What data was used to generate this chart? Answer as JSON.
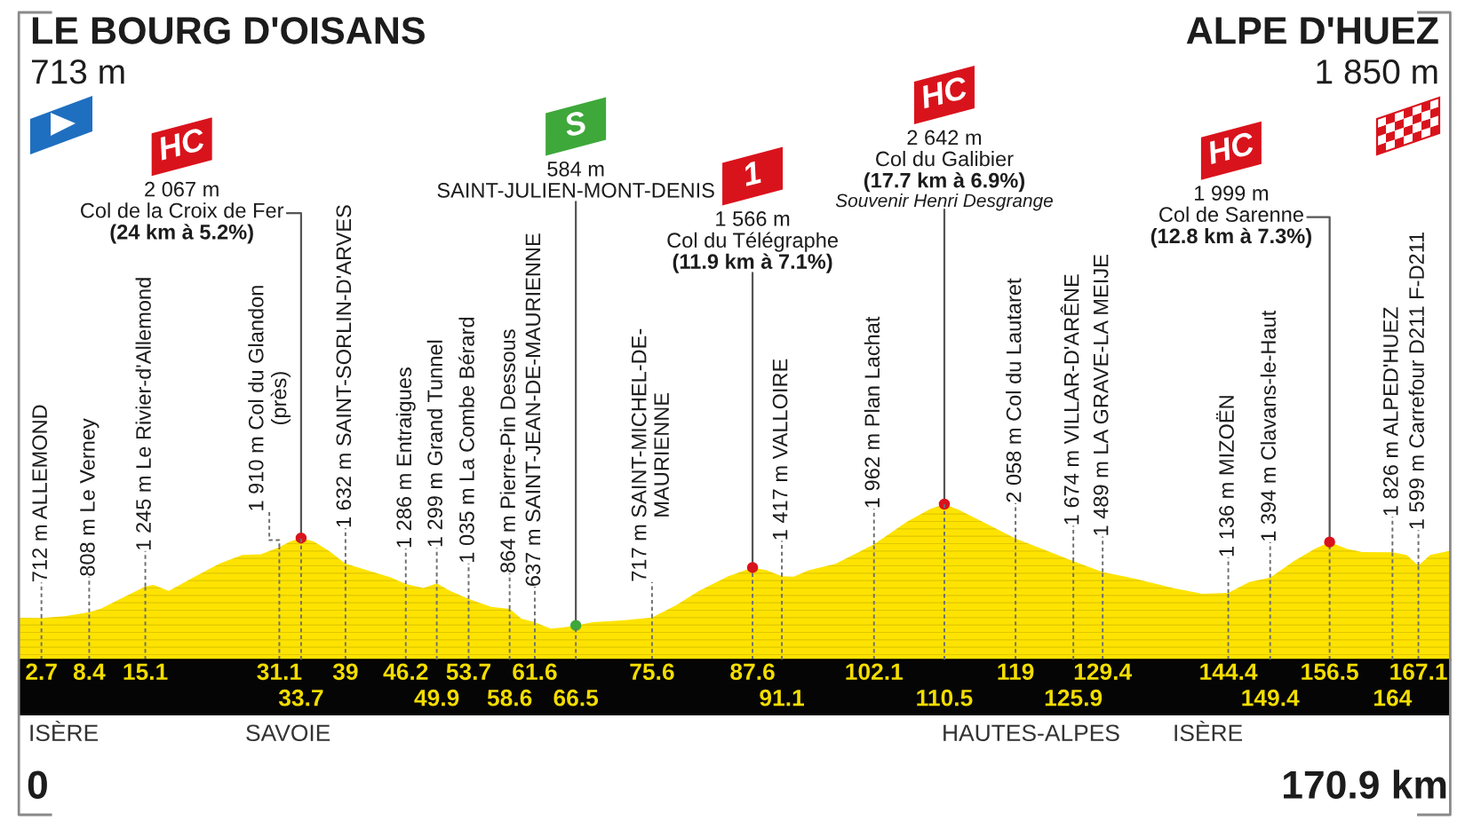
{
  "chart_data": {
    "type": "area",
    "xlim": [
      0,
      170.9
    ],
    "xticks": [
      2.7,
      8.4,
      15.1,
      31.1,
      39,
      46.2,
      53.7,
      61.6,
      75.6,
      87.6,
      102.1,
      119,
      129.4,
      144.4,
      156.5,
      167.1
    ],
    "x2lim": [
      0,
      170.9
    ],
    "x2ticks": [
      33.7,
      49.9,
      58.6,
      66.5,
      91.1,
      110.5,
      125.9,
      149.4,
      164
    ],
    "grid": "x",
    "series": [
      {
        "color": "#fee300",
        "x": [
          0,
          2.7,
          5.5,
          8.4,
          9.8,
          11.9,
          15.1,
          16.1,
          17.9,
          21.1,
          23.9,
          26.7,
          28.9,
          31.1,
          32.4,
          33.7,
          35.2,
          37,
          39,
          41.6,
          44.4,
          46.2,
          48.3,
          49.9,
          51.5,
          53.7,
          56.4,
          58.6,
          60,
          61.6,
          63.5,
          64.9,
          66.5,
          68.5,
          72,
          75.6,
          78.4,
          81.2,
          84.7,
          87.6,
          89.3,
          91.1,
          92.5,
          94.3,
          97.5,
          102.1,
          106,
          108.8,
          110.5,
          112.3,
          115.1,
          119,
          122.2,
          125.9,
          129.4,
          133.5,
          137.8,
          141.3,
          144.4,
          146.9,
          149.4,
          152.3,
          154.7,
          156.5,
          158.6,
          160.4,
          164,
          165.7,
          167.1,
          168.5,
          170.9
        ],
        "values": [
          713,
          712,
          740,
          808,
          870,
          1020,
          1245,
          1270,
          1170,
          1420,
          1630,
          1780,
          1790,
          1910,
          2010,
          2067,
          2010,
          1850,
          1632,
          1520,
          1400,
          1286,
          1220,
          1299,
          1170,
          1035,
          900,
          864,
          700,
          637,
          530,
          550,
          584,
          640,
          670,
          717,
          920,
          1170,
          1420,
          1566,
          1520,
          1417,
          1410,
          1520,
          1630,
          1962,
          2340,
          2560,
          2642,
          2540,
          2340,
          2058,
          1880,
          1674,
          1489,
          1370,
          1220,
          1120,
          1136,
          1320,
          1394,
          1680,
          1880,
          1999,
          1880,
          1830,
          1826,
          1780,
          1599,
          1780,
          1850
        ],
        "value_labels": [
          null,
          "712 m ALLEMOND",
          null,
          "808 m Le Verney",
          null,
          null,
          "1 245 m Le Rivier-d'Allemond",
          null,
          null,
          null,
          null,
          null,
          null,
          "1 910 m Col du Glandon\n(près)",
          null,
          null,
          null,
          null,
          "1 632 m SAINT-SORLIN-D'ARVES",
          null,
          null,
          "1 286 m Entraigues",
          null,
          "1 299 m Grand Tunnel",
          null,
          "1 035 m La Combe Bérard",
          null,
          "864 m Pierre-Pin Dessous",
          null,
          "637 m SAINT-JEAN-DE-MAURIENNE",
          null,
          null,
          null,
          null,
          null,
          "717 m SAINT-MICHEL-DE-\nMAURIENNE",
          null,
          null,
          null,
          null,
          null,
          "1 417 m VALLOIRE",
          null,
          null,
          null,
          "1 962 m Plan Lachat",
          null,
          null,
          null,
          null,
          null,
          "2 058 m Col du Lautaret",
          null,
          "1 674 m VILLAR-D'ARÊNE",
          "1 489 m LA GRAVE-LA MEIJE",
          null,
          null,
          null,
          "1 136 m MIZOËN",
          null,
          "1 394 m Clavans-le-Haut",
          null,
          null,
          null,
          null,
          null,
          "1 826 m ALPED'HUEZ",
          null,
          "1 599 m Carrefour D211 F-D211",
          null,
          null
        ]
      },
      {
        "type": "scatter",
        "name": "HC",
        "color": "#d9131c",
        "x": [
          33.7,
          110.5,
          156.5
        ],
        "values": [
          2067,
          2642,
          1999
        ]
      },
      {
        "type": "scatter",
        "name": "1",
        "color": "#d9131c",
        "x": [
          87.6
        ],
        "values": [
          1566
        ]
      },
      {
        "type": "scatter",
        "name": "S",
        "color": "#3ea83a",
        "x": [
          66.5
        ],
        "values": [
          584
        ]
      }
    ],
    "ref_lines": [
      {
        "axis": "x",
        "value": 0,
        "color": "#8a8a8a"
      },
      {
        "axis": "x",
        "value": 170.9,
        "color": "#8a8a8a"
      }
    ],
    "annotations": [
      "LE BOURG D'OISANS",
      "713 m",
      "ALPE D'HUEZ",
      "1 850 m",
      "ISÈRE",
      "SAVOIE",
      "HAUTES-ALPES",
      "ISÈRE",
      "0",
      "170.9 km",
      {
        "text": "2 067 m\nCol de la Croix de Fer\n(24 km à 5.2%)",
        "x": 33.7,
        "y": 2067
      },
      {
        "text": "2 642 m\nCol du Galibier\n(17.7 km à 6.9%)\nSouvenir Henri Desgrange",
        "x": 110.5,
        "y": 2642
      },
      {
        "text": "1 999 m\nCol de Sarenne\n(12.8 km à 7.3%)",
        "x": 156.5,
        "y": 1999
      },
      {
        "text": "1 566 m\nCol du Télégraphe\n(11.9 km à 7.1%)",
        "x": 87.6,
        "y": 1566
      },
      {
        "text": "584 m\nSAINT-JULIEN-MONT-DENIS",
        "x": 66.5,
        "y": 584
      }
    ]
  }
}
